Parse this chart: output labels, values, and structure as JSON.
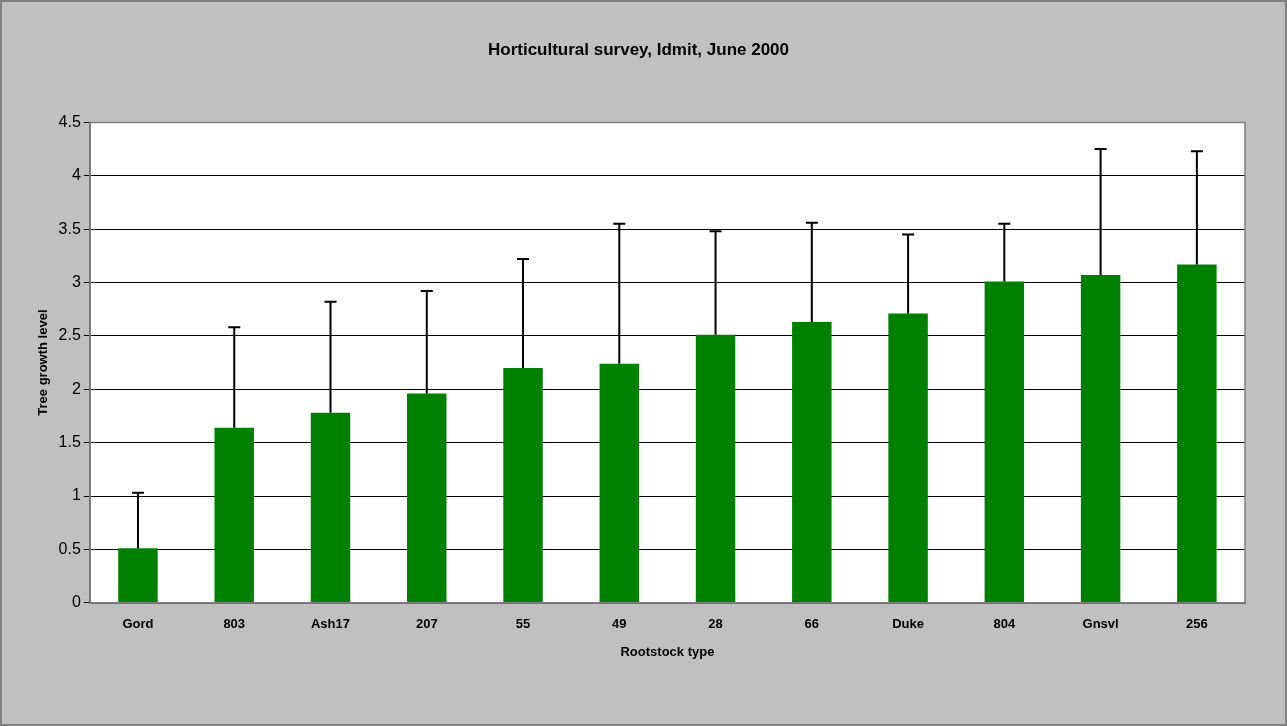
{
  "chart_data": {
    "type": "bar",
    "title": "Horticultural survey, Idmit, June 2000",
    "xlabel": "Rootstock type",
    "ylabel": "Tree growth level",
    "categories": [
      "Gord",
      "803",
      "Ash17",
      "207",
      "55",
      "49",
      "28",
      "66",
      "Duke",
      "804",
      "Gnsvl",
      "256"
    ],
    "values": [
      0.51,
      1.64,
      1.78,
      1.96,
      2.2,
      2.24,
      2.51,
      2.63,
      2.71,
      3.01,
      3.07,
      3.17
    ],
    "errors": [
      [
        0.51,
        1.03
      ],
      [
        1.64,
        2.58
      ],
      [
        1.78,
        2.82
      ],
      [
        1.96,
        2.92
      ],
      [
        2.2,
        3.22
      ],
      [
        2.24,
        3.55
      ],
      [
        2.51,
        3.48
      ],
      [
        2.63,
        3.56
      ],
      [
        2.71,
        3.45
      ],
      [
        3.01,
        3.55
      ],
      [
        3.07,
        4.25
      ],
      [
        3.17,
        4.23
      ]
    ],
    "color": "#008000",
    "ylim": [
      0,
      4.5
    ],
    "yticks": [
      0,
      0.5,
      1,
      1.5,
      2,
      2.5,
      3,
      3.5,
      4,
      4.5
    ],
    "grid": "y"
  }
}
